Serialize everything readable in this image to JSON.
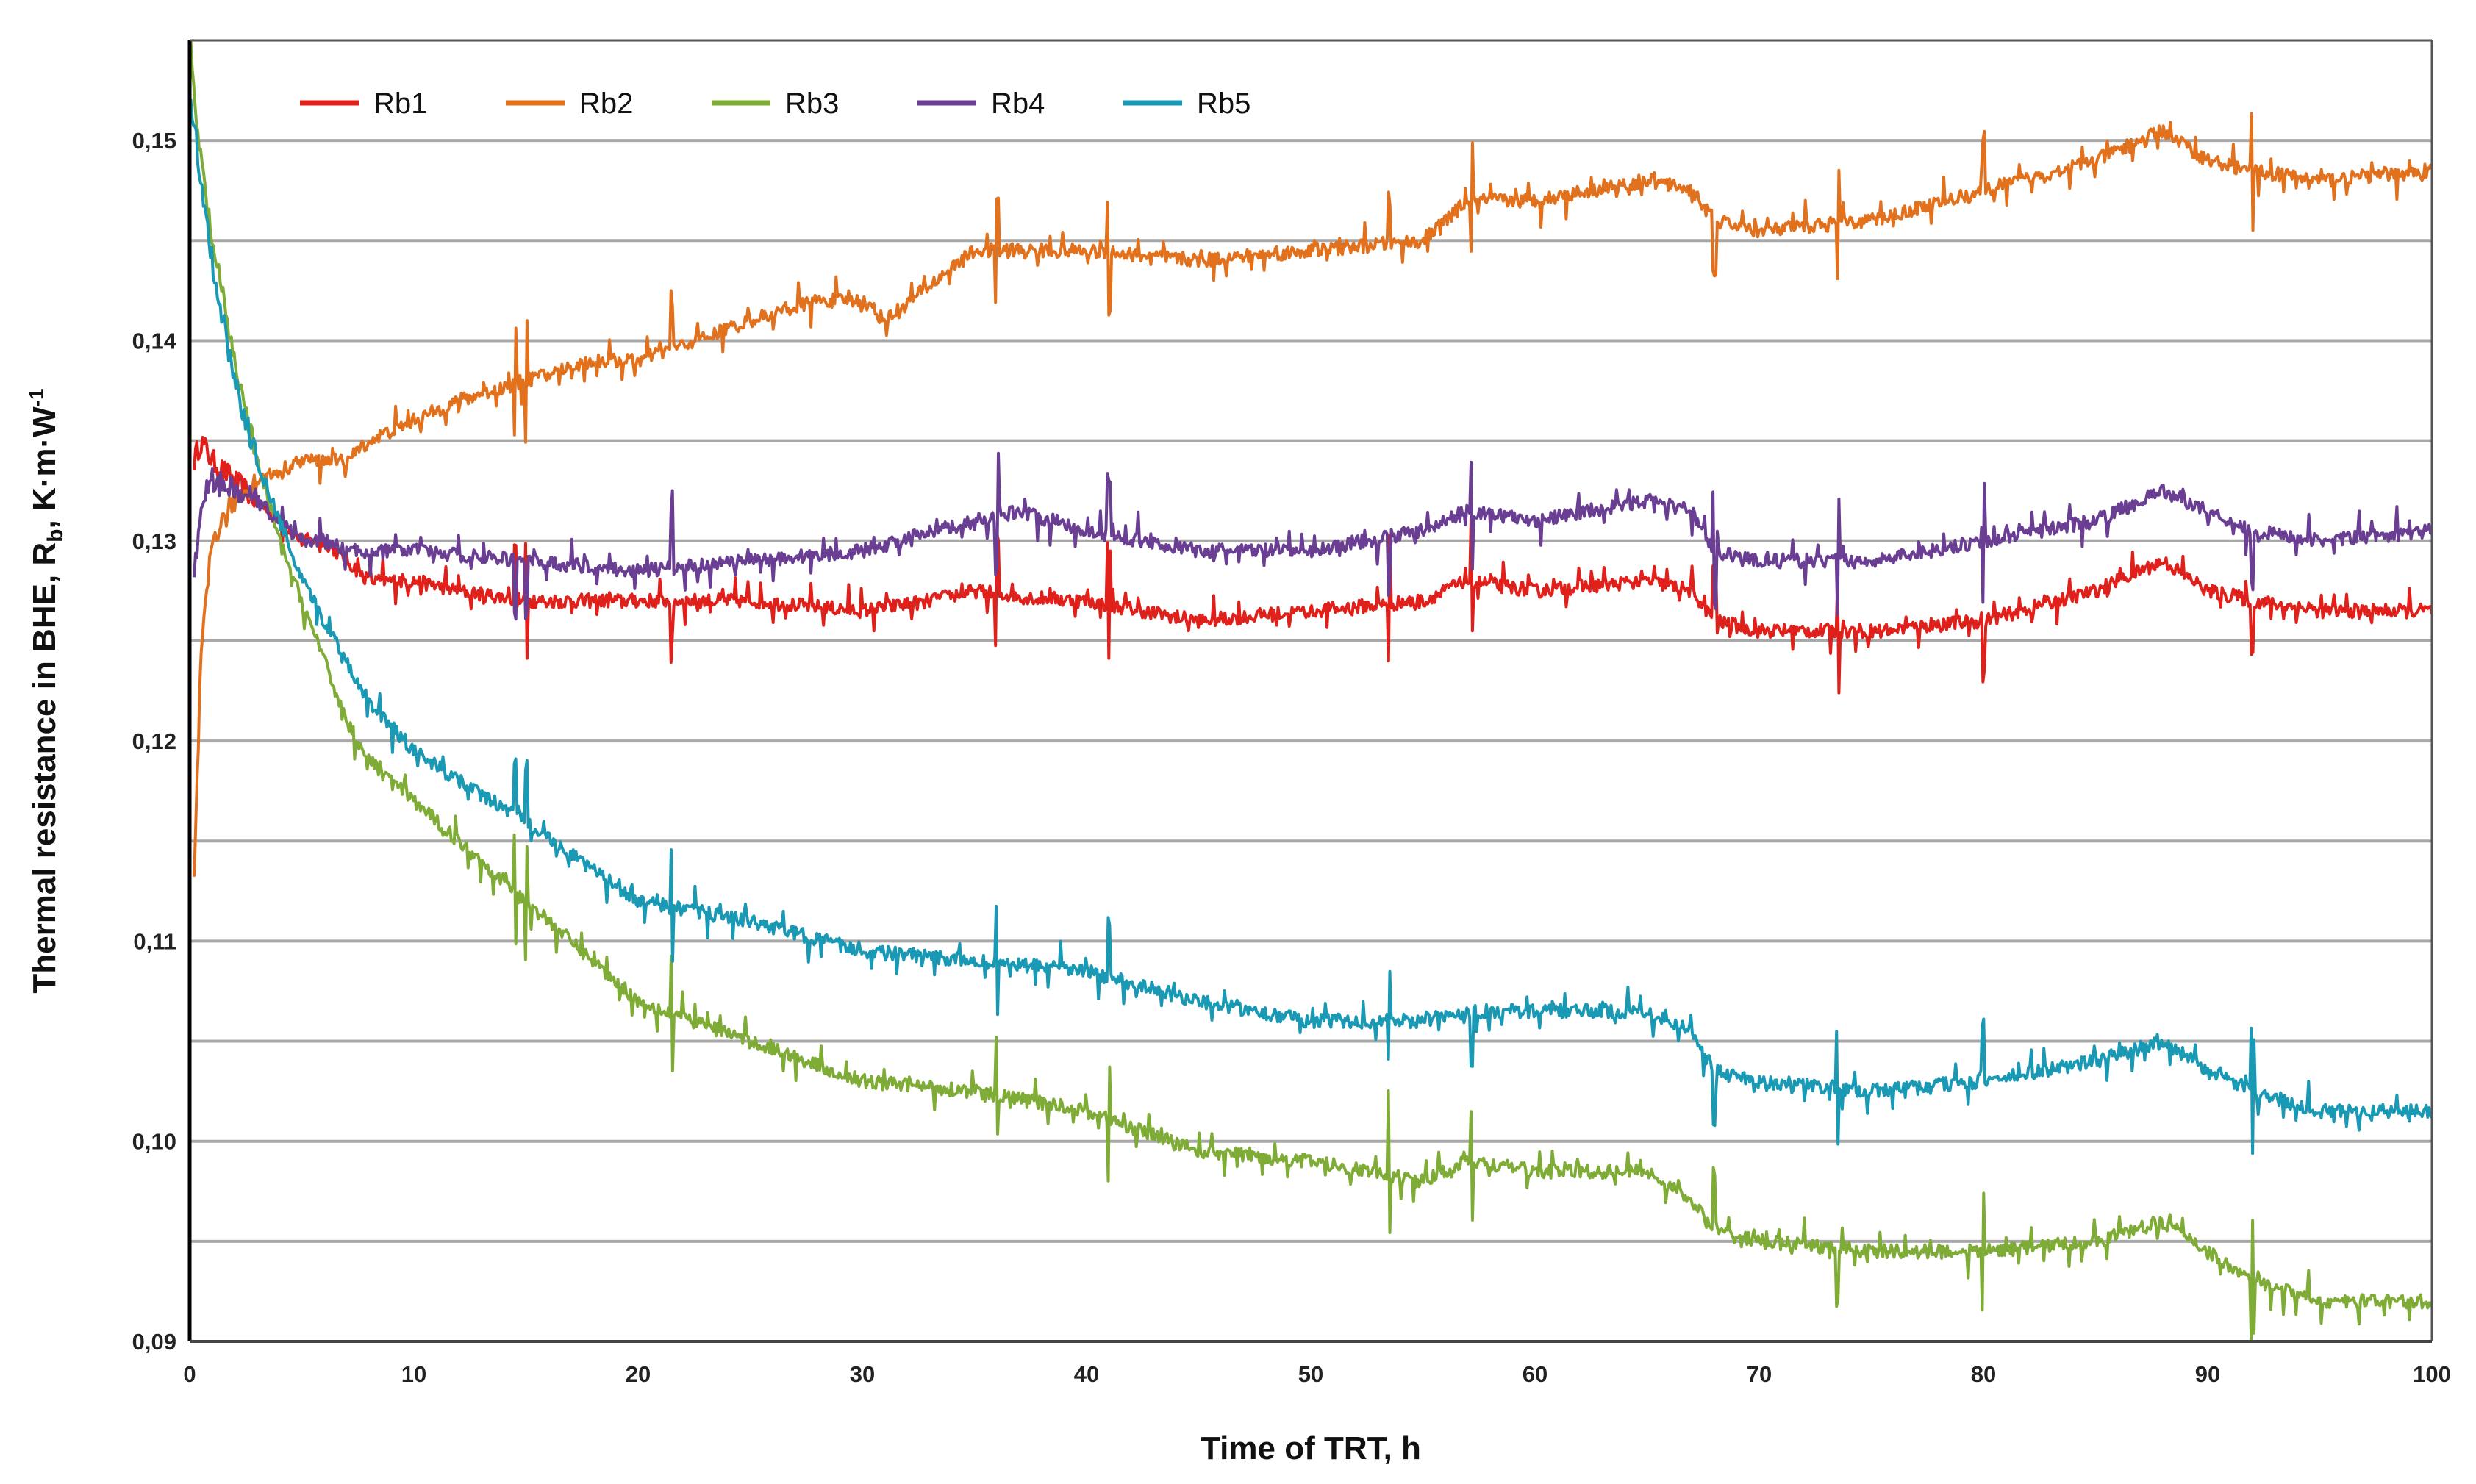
{
  "chart_data": {
    "type": "line",
    "title": "",
    "xlabel": "Time of TRT, h",
    "ylabel": "Thermal resistance in BHE, R",
    "ylabel_subscript": "b",
    "ylabel_units": ", K·m·W",
    "ylabel_superscript": "-1",
    "xlim": [
      0,
      100
    ],
    "ylim": [
      0.09,
      0.155
    ],
    "x_ticks": [
      0,
      10,
      20,
      30,
      40,
      50,
      60,
      70,
      80,
      90,
      100
    ],
    "x_tick_labels": [
      "0",
      "10",
      "20",
      "30",
      "40",
      "50",
      "60",
      "70",
      "80",
      "90",
      "100"
    ],
    "y_ticks": [
      0.09,
      0.1,
      0.11,
      0.12,
      0.13,
      0.14,
      0.15
    ],
    "y_tick_labels": [
      "0,09",
      "0,10",
      "0,11",
      "0,12",
      "0,13",
      "0,14",
      "0,15"
    ],
    "gridlines": [
      0.095,
      0.1,
      0.105,
      0.11,
      0.115,
      0.12,
      0.125,
      0.13,
      0.135,
      0.14,
      0.145,
      0.15
    ],
    "grid": true,
    "legend_position": "top-left",
    "series": [
      {
        "name": "Rb1",
        "color": "#e0201b",
        "x": [
          0.2,
          0.5,
          1,
          2,
          3,
          4,
          5,
          6,
          7,
          8,
          10,
          12,
          15,
          18,
          20,
          25,
          30,
          33,
          35,
          37,
          40,
          45,
          50,
          55,
          57,
          60,
          65,
          67,
          68,
          70,
          75,
          80,
          85,
          88,
          90,
          92,
          95,
          100
        ],
        "y": [
          0.134,
          0.135,
          0.134,
          0.133,
          0.132,
          0.131,
          0.13,
          0.13,
          0.129,
          0.128,
          0.128,
          0.1275,
          0.127,
          0.127,
          0.127,
          0.127,
          0.1265,
          0.127,
          0.1275,
          0.1272,
          0.127,
          0.126,
          0.1265,
          0.127,
          0.128,
          0.1275,
          0.128,
          0.1275,
          0.126,
          0.1255,
          0.1255,
          0.126,
          0.1275,
          0.129,
          0.1275,
          0.127,
          0.1265,
          0.1265
        ]
      },
      {
        "name": "Rb2",
        "color": "#e2711d",
        "x": [
          0.2,
          0.5,
          1,
          2,
          3,
          5,
          6,
          7,
          8,
          10,
          12,
          15,
          18,
          20,
          25,
          28,
          30,
          31,
          35,
          40,
          45,
          50,
          55,
          57,
          60,
          65,
          67,
          68,
          70,
          75,
          80,
          85,
          88,
          90,
          92,
          95,
          100
        ],
        "y": [
          0.113,
          0.124,
          0.13,
          0.132,
          0.133,
          0.134,
          0.134,
          0.134,
          0.135,
          0.136,
          0.137,
          0.138,
          0.139,
          0.139,
          0.141,
          0.142,
          0.142,
          0.141,
          0.1445,
          0.1445,
          0.144,
          0.1445,
          0.145,
          0.147,
          0.147,
          0.148,
          0.1475,
          0.146,
          0.1455,
          0.146,
          0.1475,
          0.149,
          0.1505,
          0.149,
          0.1485,
          0.148,
          0.1485
        ]
      },
      {
        "name": "Rb3",
        "color": "#7fac36",
        "x": [
          0.05,
          0.2,
          0.5,
          1,
          2,
          3,
          4,
          5,
          6,
          7,
          8,
          10,
          12,
          15,
          18,
          20,
          25,
          30,
          35,
          40,
          45,
          50,
          55,
          57,
          60,
          65,
          67,
          68,
          70,
          75,
          80,
          85,
          88,
          90,
          92,
          95,
          100
        ],
        "y": [
          0.155,
          0.152,
          0.149,
          0.145,
          0.139,
          0.134,
          0.13,
          0.127,
          0.124,
          0.121,
          0.119,
          0.117,
          0.115,
          0.112,
          0.109,
          0.107,
          0.105,
          0.103,
          0.1025,
          0.1015,
          0.0995,
          0.099,
          0.098,
          0.099,
          0.0985,
          0.0985,
          0.097,
          0.0955,
          0.095,
          0.0945,
          0.0945,
          0.095,
          0.096,
          0.0945,
          0.093,
          0.092,
          0.092
        ]
      },
      {
        "name": "Rb4",
        "color": "#6a3f93",
        "x": [
          0.2,
          0.5,
          1,
          2,
          3,
          4,
          5,
          6,
          7,
          8,
          10,
          15,
          20,
          25,
          30,
          35,
          37,
          40,
          45,
          50,
          55,
          57,
          60,
          65,
          67,
          68,
          70,
          75,
          80,
          85,
          88,
          90,
          92,
          95,
          100
        ],
        "y": [
          0.128,
          0.132,
          0.133,
          0.1325,
          0.132,
          0.131,
          0.13,
          0.13,
          0.1295,
          0.1295,
          0.1295,
          0.129,
          0.1285,
          0.129,
          0.1295,
          0.131,
          0.1315,
          0.1305,
          0.1295,
          0.1295,
          0.1305,
          0.1315,
          0.131,
          0.132,
          0.1315,
          0.1295,
          0.129,
          0.129,
          0.13,
          0.131,
          0.1325,
          0.1315,
          0.1305,
          0.13,
          0.1305
        ]
      },
      {
        "name": "Rb5",
        "color": "#1a99b5",
        "x": [
          0.05,
          0.2,
          0.5,
          1,
          2,
          3,
          4,
          5,
          6,
          7,
          8,
          10,
          12,
          15,
          18,
          20,
          25,
          30,
          35,
          40,
          45,
          50,
          55,
          57,
          60,
          65,
          67,
          68,
          70,
          75,
          80,
          85,
          88,
          90,
          92,
          95,
          100
        ],
        "y": [
          0.152,
          0.151,
          0.148,
          0.144,
          0.138,
          0.134,
          0.131,
          0.128,
          0.126,
          0.124,
          0.122,
          0.1195,
          0.118,
          0.116,
          0.1135,
          0.112,
          0.111,
          0.1095,
          0.109,
          0.1085,
          0.107,
          0.106,
          0.106,
          0.1065,
          0.1065,
          0.1065,
          0.1055,
          0.1035,
          0.103,
          0.1025,
          0.103,
          0.104,
          0.105,
          0.1035,
          0.1025,
          0.1015,
          0.1015
        ]
      }
    ]
  }
}
